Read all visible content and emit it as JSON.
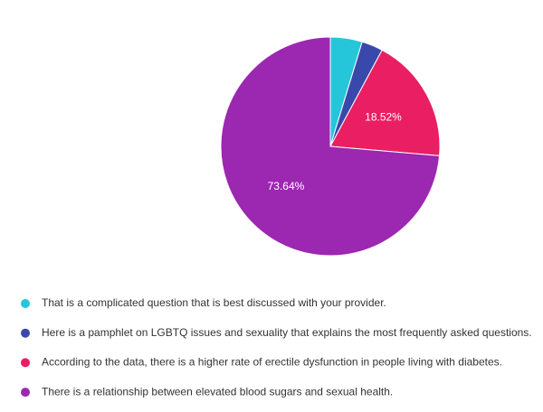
{
  "chart_data": {
    "type": "pie",
    "categories": [
      "That is a complicated question that is best discussed with your provider.",
      "Here is a pamphlet on LGBTQ issues and sexuality that explains the most frequently asked questions.",
      "According to the data, there is a higher rate of erectile dysfunction in people living with diabetes.",
      "There is a relationship between elevated blood sugars and sexual health."
    ],
    "values": [
      4.7,
      3.14,
      18.52,
      73.64
    ],
    "value_labels": [
      null,
      null,
      "18.52%",
      "73.64%"
    ],
    "colors": [
      "#26c6da",
      "#3949ab",
      "#e91e63",
      "#9c27b0"
    ],
    "legend": "bottom"
  }
}
